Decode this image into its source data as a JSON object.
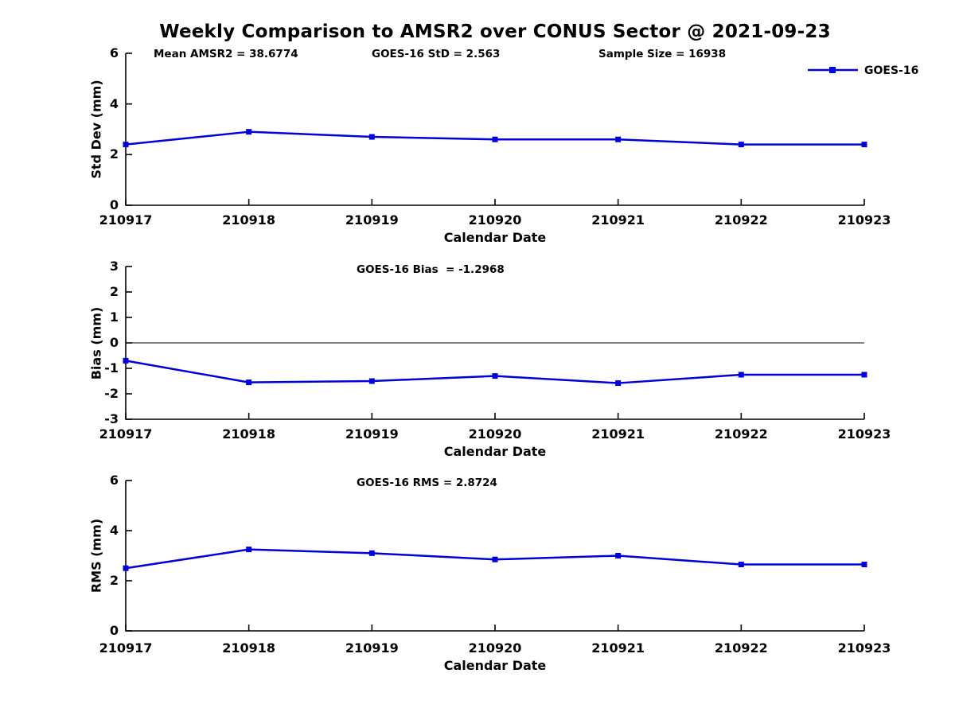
{
  "title": "Weekly Comparison to AMSR2 over CONUS Sector @ 2021-09-23",
  "legend": {
    "label": "GOES-16"
  },
  "colors": {
    "line": "#0000DD",
    "axis": "#000000",
    "zero_line": "#000000",
    "text": "#000000"
  },
  "chart_data": [
    {
      "type": "line",
      "title": "",
      "annotations": [
        "Mean AMSR2 = 38.6774",
        "GOES-16 StD = 2.563",
        "Sample Size = 16938"
      ],
      "xlabel": "Calendar Date",
      "ylabel": "Std Dev (mm)",
      "categories": [
        "210917",
        "210918",
        "210919",
        "210920",
        "210921",
        "210922",
        "210923"
      ],
      "series": [
        {
          "name": "GOES-16",
          "values": [
            2.4,
            2.9,
            2.7,
            2.6,
            2.6,
            2.4,
            2.4
          ]
        }
      ],
      "ylim": [
        0,
        6
      ],
      "yticks": [
        0,
        2,
        4,
        6
      ],
      "zero_line": false,
      "grid": false,
      "legend_position": "top-right",
      "marker": "square"
    },
    {
      "type": "line",
      "title": "",
      "annotations": [
        "GOES-16 Bias  = -1.2968"
      ],
      "xlabel": "Calendar Date",
      "ylabel": "Bias (mm)",
      "categories": [
        "210917",
        "210918",
        "210919",
        "210920",
        "210921",
        "210922",
        "210923"
      ],
      "series": [
        {
          "name": "GOES-16",
          "values": [
            -0.7,
            -1.55,
            -1.5,
            -1.3,
            -1.58,
            -1.25,
            -1.25
          ]
        }
      ],
      "ylim": [
        -3,
        3
      ],
      "yticks": [
        3,
        2,
        1,
        0,
        -1,
        -2,
        -3
      ],
      "zero_line": true,
      "grid": false,
      "legend_position": "none",
      "marker": "square"
    },
    {
      "type": "line",
      "title": "",
      "annotations": [
        "GOES-16 RMS = 2.8724"
      ],
      "xlabel": "Calendar Date",
      "ylabel": "RMS (mm)",
      "categories": [
        "210917",
        "210918",
        "210919",
        "210920",
        "210921",
        "210922",
        "210923"
      ],
      "series": [
        {
          "name": "GOES-16",
          "values": [
            2.5,
            3.25,
            3.1,
            2.85,
            3.0,
            2.65,
            2.65
          ]
        }
      ],
      "ylim": [
        0,
        6
      ],
      "yticks": [
        0,
        2,
        4,
        6
      ],
      "zero_line": false,
      "grid": false,
      "legend_position": "none",
      "marker": "square"
    }
  ]
}
